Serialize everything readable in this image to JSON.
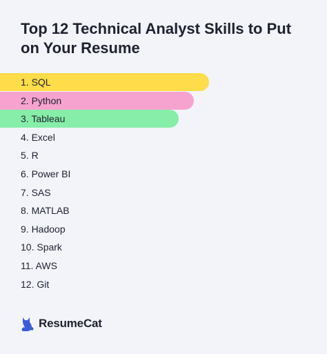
{
  "title": "Top 12 Technical Analyst Skills to Put on Your Resume",
  "skills": [
    {
      "label": "1. SQL",
      "color": "#fedc4a"
    },
    {
      "label": "2. Python",
      "color": "#f7a3cf"
    },
    {
      "label": "3. Tableau",
      "color": "#86eea8"
    },
    {
      "label": "4. Excel"
    },
    {
      "label": "5. R"
    },
    {
      "label": "6. Power BI"
    },
    {
      "label": "7. SAS"
    },
    {
      "label": "8. MATLAB"
    },
    {
      "label": "9. Hadoop"
    },
    {
      "label": "10. Spark"
    },
    {
      "label": "11. AWS"
    },
    {
      "label": "12. Git"
    }
  ],
  "brand": {
    "name": "ResumeCat",
    "icon": "cat-logo-icon",
    "color": "#3a5bd9"
  }
}
